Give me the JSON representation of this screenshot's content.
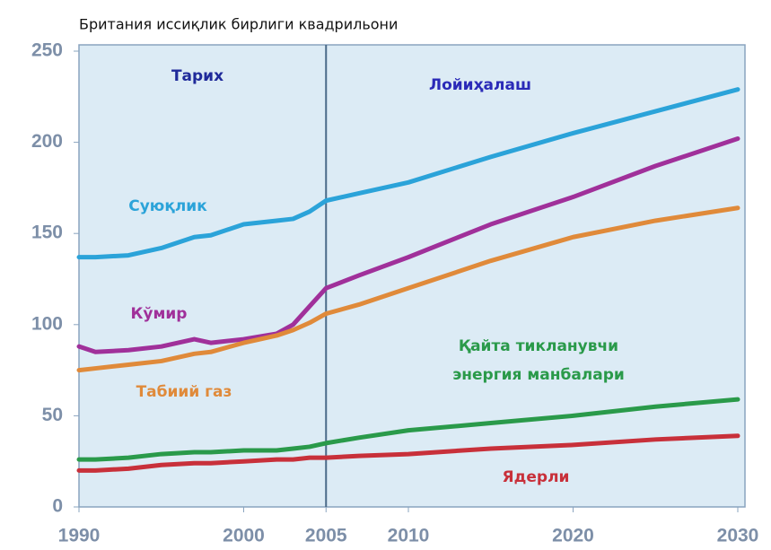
{
  "chart_data": {
    "type": "line",
    "title": "Британия иссиқлик бирлиги квадрильони",
    "annotations": [
      "Тарих",
      "Лойиҳалаш"
    ],
    "divider_x": 2005,
    "x": [
      1990,
      1991,
      1993,
      1995,
      1997,
      1998,
      2000,
      2002,
      2003,
      2004,
      2005,
      2007,
      2010,
      2015,
      2020,
      2025,
      2030
    ],
    "series": [
      {
        "name": "Суюқлик",
        "color": "#2ba3d9",
        "values": [
          137,
          137,
          138,
          142,
          148,
          149,
          155,
          157,
          158,
          162,
          168,
          172,
          178,
          192,
          205,
          217,
          229
        ]
      },
      {
        "name": "Кўмир",
        "color": "#a0309a",
        "values": [
          88,
          85,
          86,
          88,
          92,
          90,
          92,
          95,
          100,
          110,
          120,
          127,
          137,
          155,
          170,
          187,
          202
        ]
      },
      {
        "name": "Табиий газ",
        "color": "#e08a3a",
        "values": [
          75,
          76,
          78,
          80,
          84,
          85,
          90,
          94,
          97,
          101,
          106,
          111,
          120,
          135,
          148,
          157,
          164
        ]
      },
      {
        "name": "Қайта тикланувчи энергия манбалари",
        "color": "#2a9a4a",
        "values": [
          26,
          26,
          27,
          29,
          30,
          30,
          31,
          31,
          32,
          33,
          35,
          38,
          42,
          46,
          50,
          55,
          59
        ]
      },
      {
        "name": "Ядерли",
        "color": "#c8303a",
        "values": [
          20,
          20,
          21,
          23,
          24,
          24,
          25,
          26,
          26,
          27,
          27,
          28,
          29,
          32,
          34,
          37,
          39
        ]
      }
    ],
    "xlim": [
      1990,
      2030
    ],
    "ylim": [
      0,
      250
    ],
    "xticks": [
      1990,
      2000,
      2005,
      2010,
      2020,
      2030
    ],
    "yticks": [
      0,
      50,
      100,
      150,
      200,
      250
    ],
    "grid": false
  }
}
